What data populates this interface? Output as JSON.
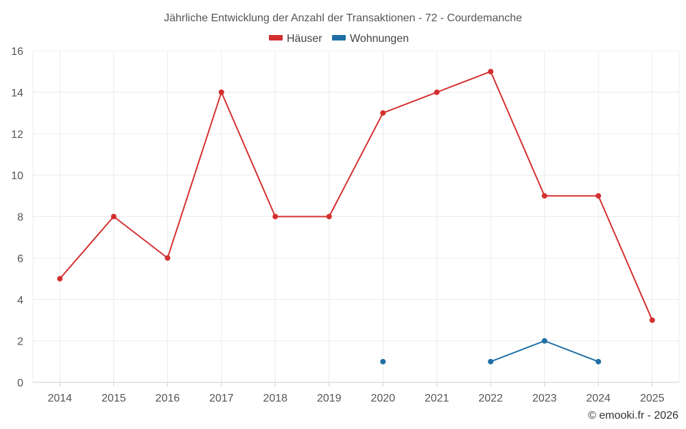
{
  "chart_data": {
    "type": "line",
    "title": "Jährliche Entwicklung der Anzahl der Transaktionen - 72 - Courdemanche",
    "categories": [
      "2014",
      "2015",
      "2016",
      "2017",
      "2018",
      "2019",
      "2020",
      "2021",
      "2022",
      "2023",
      "2024",
      "2025"
    ],
    "ylim": [
      0,
      16
    ],
    "yticks": [
      "0",
      "2",
      "4",
      "6",
      "8",
      "10",
      "12",
      "14",
      "16"
    ],
    "grid": true,
    "legend_position": "top-center",
    "series": [
      {
        "name": "Häuser",
        "color": "#d32f2f",
        "values": [
          5,
          8,
          6,
          14,
          8,
          8,
          13,
          14,
          15,
          9,
          9,
          3
        ]
      },
      {
        "name": "Wohnungen",
        "color": "#1f6fa5",
        "values": [
          null,
          null,
          null,
          null,
          null,
          null,
          1,
          null,
          1,
          2,
          1,
          null
        ]
      }
    ]
  },
  "credit": "© emooki.fr - 2026"
}
